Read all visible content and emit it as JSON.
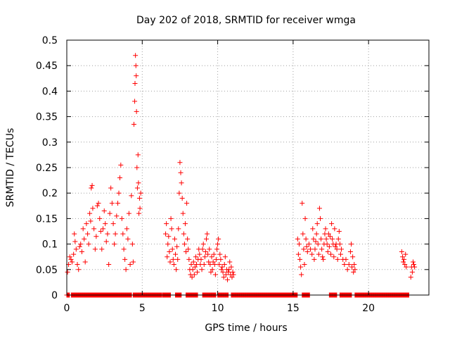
{
  "chart_data": {
    "type": "scatter",
    "title": "Day 202 of 2018, SRMTID for receiver wmga",
    "xlabel": "GPS time / hours",
    "ylabel": "SRMTID / TECUs",
    "xlim": [
      0,
      24
    ],
    "ylim": [
      0,
      0.5
    ],
    "xticks": [
      0,
      5,
      10,
      15,
      20
    ],
    "xtick_labels": [
      "0",
      "5",
      "10",
      "15",
      "20"
    ],
    "yticks": [
      0,
      0.05,
      0.1,
      0.15,
      0.2,
      0.25,
      0.3,
      0.35,
      0.4,
      0.45,
      0.5
    ],
    "ytick_labels": [
      "0",
      "0.05",
      "0.1",
      "0.15",
      "0.2",
      "0.25",
      "0.3",
      "0.35",
      "0.4",
      "0.45",
      "0.5"
    ],
    "grid": true,
    "marker": "+",
    "color": "#ff0000",
    "series": [
      {
        "name": "SRMTID",
        "points": [
          [
            0.05,
            0.045
          ],
          [
            0.12,
            0.06
          ],
          [
            0.2,
            0.075
          ],
          [
            0.28,
            0.07
          ],
          [
            0.35,
            0.065
          ],
          [
            0.45,
            0.08
          ],
          [
            0.5,
            0.12
          ],
          [
            0.55,
            0.105
          ],
          [
            0.62,
            0.09
          ],
          [
            0.7,
            0.06
          ],
          [
            0.78,
            0.05
          ],
          [
            0.85,
            0.095
          ],
          [
            0.92,
            0.1
          ],
          [
            1.0,
            0.085
          ],
          [
            1.08,
            0.13
          ],
          [
            1.15,
            0.11
          ],
          [
            1.22,
            0.065
          ],
          [
            1.3,
            0.14
          ],
          [
            1.38,
            0.12
          ],
          [
            1.45,
            0.1
          ],
          [
            1.52,
            0.16
          ],
          [
            1.58,
            0.145
          ],
          [
            1.62,
            0.21
          ],
          [
            1.68,
            0.215
          ],
          [
            1.72,
            0.17
          ],
          [
            1.8,
            0.13
          ],
          [
            1.88,
            0.09
          ],
          [
            1.95,
            0.115
          ],
          [
            2.02,
            0.175
          ],
          [
            2.1,
            0.18
          ],
          [
            2.18,
            0.15
          ],
          [
            2.25,
            0.125
          ],
          [
            2.32,
            0.09
          ],
          [
            2.4,
            0.13
          ],
          [
            2.48,
            0.165
          ],
          [
            2.55,
            0.14
          ],
          [
            2.62,
            0.105
          ],
          [
            2.7,
            0.12
          ],
          [
            2.78,
            0.06
          ],
          [
            2.85,
            0.16
          ],
          [
            2.92,
            0.21
          ],
          [
            3.0,
            0.18
          ],
          [
            3.08,
            0.14
          ],
          [
            3.15,
            0.1
          ],
          [
            3.22,
            0.12
          ],
          [
            3.3,
            0.155
          ],
          [
            3.38,
            0.18
          ],
          [
            3.45,
            0.2
          ],
          [
            3.52,
            0.23
          ],
          [
            3.58,
            0.255
          ],
          [
            3.65,
            0.15
          ],
          [
            3.72,
            0.12
          ],
          [
            3.78,
            0.09
          ],
          [
            3.85,
            0.07
          ],
          [
            3.92,
            0.05
          ],
          [
            3.98,
            0.13
          ],
          [
            4.05,
            0.11
          ],
          [
            4.12,
            0.16
          ],
          [
            4.2,
            0.06
          ],
          [
            4.28,
            0.195
          ],
          [
            4.35,
            0.1
          ],
          [
            4.4,
            0.065
          ],
          [
            4.45,
            0.335
          ],
          [
            4.5,
            0.38
          ],
          [
            4.52,
            0.415
          ],
          [
            4.55,
            0.47
          ],
          [
            4.58,
            0.45
          ],
          [
            4.6,
            0.43
          ],
          [
            4.62,
            0.36
          ],
          [
            4.65,
            0.25
          ],
          [
            4.68,
            0.21
          ],
          [
            4.72,
            0.275
          ],
          [
            4.75,
            0.22
          ],
          [
            4.78,
            0.16
          ],
          [
            4.82,
            0.19
          ],
          [
            4.85,
            0.17
          ],
          [
            4.9,
            0.2
          ],
          [
            6.55,
            0.12
          ],
          [
            6.6,
            0.14
          ],
          [
            6.65,
            0.075
          ],
          [
            6.7,
            0.1
          ],
          [
            6.75,
            0.115
          ],
          [
            6.8,
            0.085
          ],
          [
            6.85,
            0.065
          ],
          [
            6.9,
            0.15
          ],
          [
            6.95,
            0.13
          ],
          [
            7.0,
            0.09
          ],
          [
            7.05,
            0.07
          ],
          [
            7.1,
            0.06
          ],
          [
            7.15,
            0.11
          ],
          [
            7.2,
            0.08
          ],
          [
            7.25,
            0.05
          ],
          [
            7.3,
            0.095
          ],
          [
            7.35,
            0.07
          ],
          [
            7.4,
            0.13
          ],
          [
            7.45,
            0.2
          ],
          [
            7.5,
            0.26
          ],
          [
            7.55,
            0.24
          ],
          [
            7.6,
            0.22
          ],
          [
            7.65,
            0.19
          ],
          [
            7.7,
            0.16
          ],
          [
            7.75,
            0.12
          ],
          [
            7.8,
            0.1
          ],
          [
            7.85,
            0.14
          ],
          [
            7.9,
            0.085
          ],
          [
            7.95,
            0.18
          ],
          [
            8.0,
            0.11
          ],
          [
            8.05,
            0.09
          ],
          [
            8.1,
            0.07
          ],
          [
            8.15,
            0.05
          ],
          [
            8.2,
            0.04
          ],
          [
            8.25,
            0.06
          ],
          [
            8.3,
            0.035
          ],
          [
            8.35,
            0.05
          ],
          [
            8.4,
            0.065
          ],
          [
            8.45,
            0.04
          ],
          [
            8.5,
            0.055
          ],
          [
            8.55,
            0.075
          ],
          [
            8.6,
            0.06
          ],
          [
            8.65,
            0.045
          ],
          [
            8.7,
            0.07
          ],
          [
            8.75,
            0.09
          ],
          [
            8.8,
            0.08
          ],
          [
            8.85,
            0.06
          ],
          [
            8.9,
            0.07
          ],
          [
            8.95,
            0.05
          ],
          [
            9.0,
            0.09
          ],
          [
            9.05,
            0.1
          ],
          [
            9.1,
            0.06
          ],
          [
            9.15,
            0.075
          ],
          [
            9.2,
            0.085
          ],
          [
            9.25,
            0.11
          ],
          [
            9.3,
            0.12
          ],
          [
            9.35,
            0.08
          ],
          [
            9.4,
            0.065
          ],
          [
            9.45,
            0.09
          ],
          [
            9.5,
            0.06
          ],
          [
            9.55,
            0.045
          ],
          [
            9.6,
            0.075
          ],
          [
            9.65,
            0.05
          ],
          [
            9.7,
            0.065
          ],
          [
            9.75,
            0.08
          ],
          [
            9.8,
            0.06
          ],
          [
            9.85,
            0.04
          ],
          [
            9.9,
            0.07
          ],
          [
            9.95,
            0.09
          ],
          [
            10.0,
            0.1
          ],
          [
            10.05,
            0.11
          ],
          [
            10.1,
            0.06
          ],
          [
            10.15,
            0.08
          ],
          [
            10.2,
            0.07
          ],
          [
            10.25,
            0.05
          ],
          [
            10.3,
            0.055
          ],
          [
            10.35,
            0.045
          ],
          [
            10.4,
            0.035
          ],
          [
            10.45,
            0.06
          ],
          [
            10.5,
            0.075
          ],
          [
            10.55,
            0.04
          ],
          [
            10.6,
            0.05
          ],
          [
            10.65,
            0.03
          ],
          [
            10.7,
            0.045
          ],
          [
            10.75,
            0.05
          ],
          [
            10.8,
            0.065
          ],
          [
            10.85,
            0.04
          ],
          [
            10.9,
            0.055
          ],
          [
            10.95,
            0.035
          ],
          [
            11.0,
            0.045
          ],
          [
            11.05,
            0.04
          ],
          [
            15.3,
            0.11
          ],
          [
            15.35,
            0.08
          ],
          [
            15.4,
            0.1
          ],
          [
            15.45,
            0.07
          ],
          [
            15.5,
            0.055
          ],
          [
            15.55,
            0.04
          ],
          [
            15.6,
            0.18
          ],
          [
            15.65,
            0.12
          ],
          [
            15.7,
            0.09
          ],
          [
            15.75,
            0.06
          ],
          [
            15.8,
            0.15
          ],
          [
            15.85,
            0.11
          ],
          [
            15.9,
            0.095
          ],
          [
            15.95,
            0.085
          ],
          [
            16.05,
            0.1
          ],
          [
            16.15,
            0.09
          ],
          [
            16.25,
            0.08
          ],
          [
            16.3,
            0.13
          ],
          [
            16.35,
            0.11
          ],
          [
            16.4,
            0.07
          ],
          [
            16.45,
            0.09
          ],
          [
            16.5,
            0.105
          ],
          [
            16.55,
            0.12
          ],
          [
            16.6,
            0.14
          ],
          [
            16.65,
            0.1
          ],
          [
            16.7,
            0.08
          ],
          [
            16.75,
            0.17
          ],
          [
            16.8,
            0.15
          ],
          [
            16.85,
            0.11
          ],
          [
            16.9,
            0.09
          ],
          [
            16.95,
            0.075
          ],
          [
            17.0,
            0.07
          ],
          [
            17.05,
            0.1
          ],
          [
            17.1,
            0.12
          ],
          [
            17.15,
            0.13
          ],
          [
            17.2,
            0.11
          ],
          [
            17.25,
            0.1
          ],
          [
            17.3,
            0.085
          ],
          [
            17.35,
            0.12
          ],
          [
            17.4,
            0.095
          ],
          [
            17.45,
            0.115
          ],
          [
            17.5,
            0.08
          ],
          [
            17.55,
            0.14
          ],
          [
            17.6,
            0.11
          ],
          [
            17.65,
            0.1
          ],
          [
            17.7,
            0.075
          ],
          [
            17.75,
            0.13
          ],
          [
            17.8,
            0.095
          ],
          [
            17.85,
            0.1
          ],
          [
            17.9,
            0.09
          ],
          [
            17.95,
            0.07
          ],
          [
            18.0,
            0.11
          ],
          [
            18.05,
            0.125
          ],
          [
            18.1,
            0.1
          ],
          [
            18.15,
            0.08
          ],
          [
            18.2,
            0.09
          ],
          [
            18.3,
            0.07
          ],
          [
            18.4,
            0.06
          ],
          [
            18.5,
            0.07
          ],
          [
            18.6,
            0.05
          ],
          [
            18.7,
            0.06
          ],
          [
            18.8,
            0.085
          ],
          [
            18.85,
            0.1
          ],
          [
            18.9,
            0.055
          ],
          [
            18.95,
            0.075
          ],
          [
            19.0,
            0.045
          ],
          [
            19.05,
            0.06
          ],
          [
            19.1,
            0.05
          ],
          [
            22.2,
            0.085
          ],
          [
            22.25,
            0.075
          ],
          [
            22.3,
            0.065
          ],
          [
            22.35,
            0.07
          ],
          [
            22.4,
            0.06
          ],
          [
            22.45,
            0.08
          ],
          [
            22.5,
            0.055
          ],
          [
            22.8,
            0.035
          ],
          [
            22.85,
            0.055
          ],
          [
            22.9,
            0.045
          ],
          [
            22.95,
            0.065
          ],
          [
            23.0,
            0.06
          ],
          [
            23.05,
            0.055
          ]
        ]
      }
    ],
    "zero_ranges": [
      [
        0.0,
        0.2
      ],
      [
        0.3,
        4.3
      ],
      [
        4.4,
        6.3
      ],
      [
        6.35,
        6.9
      ],
      [
        7.2,
        7.6
      ],
      [
        7.9,
        8.7
      ],
      [
        9.0,
        9.9
      ],
      [
        10.0,
        10.7
      ],
      [
        10.9,
        15.3
      ],
      [
        15.6,
        16.1
      ],
      [
        17.4,
        17.9
      ],
      [
        18.1,
        18.9
      ],
      [
        19.1,
        22.7
      ]
    ]
  }
}
